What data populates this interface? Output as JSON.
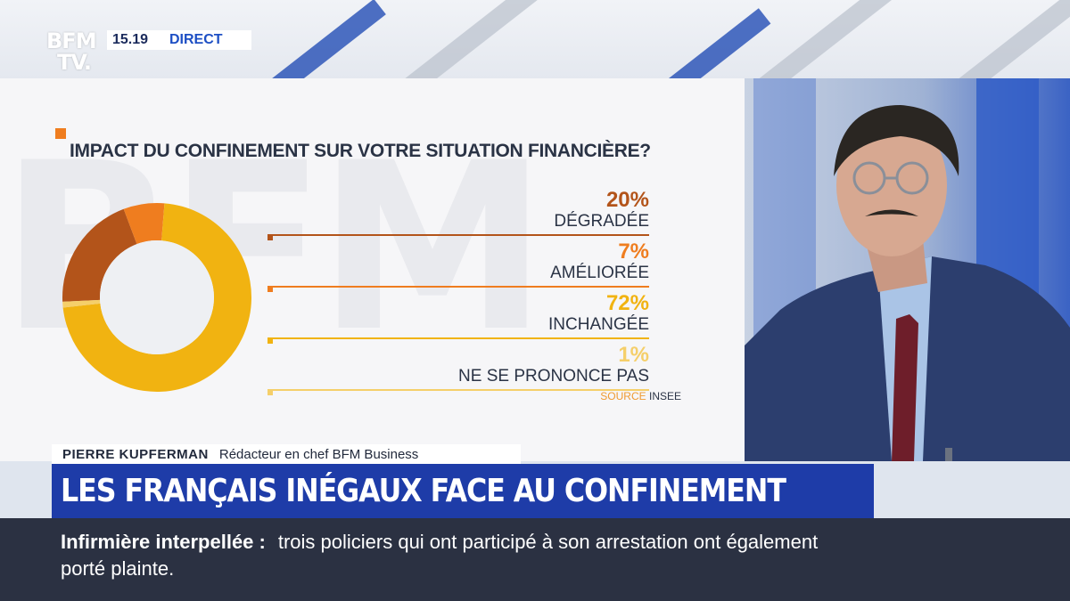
{
  "channel": {
    "logo_line1": "BFM",
    "logo_line2": "TV.",
    "time": "15.19",
    "live_label": "DIRECT"
  },
  "infographic": {
    "question": "IMPACT DU CONFINEMENT SUR VOTRE SITUATION FINANCIÈRE?",
    "source_label": "SOURCE",
    "source_value": "INSEE",
    "items": [
      {
        "pct": "20%",
        "label": "DÉGRADÉE",
        "color": "#b3541a"
      },
      {
        "pct": "7%",
        "label": "AMÉLIORÉE",
        "color": "#ef7d1f"
      },
      {
        "pct": "72%",
        "label": "INCHANGÉE",
        "color": "#f1b311"
      },
      {
        "pct": "1%",
        "label": "NE SE PRONONCE PAS",
        "color": "#f5cf6a"
      }
    ]
  },
  "chart_data": {
    "type": "pie",
    "categories": [
      "DÉGRADÉE",
      "AMÉLIORÉE",
      "INCHANGÉE",
      "NE SE PRONONCE PAS"
    ],
    "values": [
      20,
      7,
      72,
      1
    ],
    "colors": [
      "#b3541a",
      "#ef7d1f",
      "#f1b311",
      "#f5cf6a"
    ],
    "title": "IMPACT DU CONFINEMENT SUR VOTRE SITUATION FINANCIÈRE?"
  },
  "strap": {
    "name": "PIERRE KUPFERMAN",
    "role": "Rédacteur en chef BFM Business"
  },
  "headline": "LES FRANÇAIS INÉGAUX FACE AU CONFINEMENT",
  "ticker": {
    "topic": "Infirmière interpellée :",
    "text": "trois policiers qui ont participé à son arrestation ont également porté plainte."
  }
}
